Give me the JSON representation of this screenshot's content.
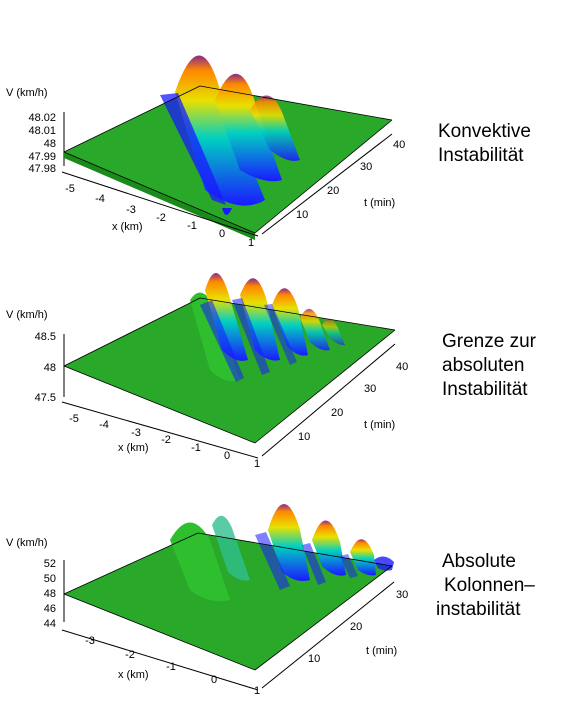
{
  "chart_data": [
    {
      "type": "surface",
      "zlabel": "V (km/h)",
      "xlabel": "x (km)",
      "ylabel": "t (min)",
      "z_ticks": [
        "48.02",
        "48.01",
        "48",
        "47.99",
        "47.98"
      ],
      "x_ticks": [
        "-5",
        "-4",
        "-3",
        "-2",
        "-1",
        "0",
        "1"
      ],
      "t_ticks": [
        "10",
        "20",
        "30",
        "40"
      ],
      "caption": [
        "Konvektive",
        "Instabilität"
      ],
      "wave": {
        "type": "convective",
        "peak_count": 3,
        "z_base": 48,
        "z_max": 48.02,
        "z_min": 47.98
      }
    },
    {
      "type": "surface",
      "zlabel": "V (km/h)",
      "xlabel": "x (km)",
      "ylabel": "t (min)",
      "z_ticks": [
        "48.5",
        "48",
        "47.5"
      ],
      "x_ticks": [
        "-5",
        "-4",
        "-3",
        "-2",
        "-1",
        "0",
        "1"
      ],
      "t_ticks": [
        "10",
        "20",
        "30",
        "40"
      ],
      "caption": [
        "Grenze zur",
        "absoluten",
        "Instabilität"
      ],
      "wave": {
        "type": "marginal",
        "peak_count": 5,
        "z_base": 48,
        "z_max": 48.5,
        "z_min": 47.5
      }
    },
    {
      "type": "surface",
      "zlabel": "V (km/h)",
      "xlabel": "x (km)",
      "ylabel": "t (min)",
      "z_ticks": [
        "52",
        "50",
        "48",
        "46",
        "44"
      ],
      "x_ticks": [
        "-3",
        "-2",
        "-1",
        "0",
        "1"
      ],
      "t_ticks": [
        "10",
        "20",
        "30"
      ],
      "caption": [
        "Absolute",
        "Kolonnen–",
        "instabilität"
      ],
      "wave": {
        "type": "absolute",
        "peak_count": 4,
        "z_base": 48,
        "z_max": 52,
        "z_min": 44
      }
    }
  ],
  "colors": {
    "surface_base": "#2aa82a",
    "trough": "#1a1aff",
    "crest": "#ff9a00",
    "peak_tip": "#8a2a8a",
    "axis": "#000000"
  }
}
